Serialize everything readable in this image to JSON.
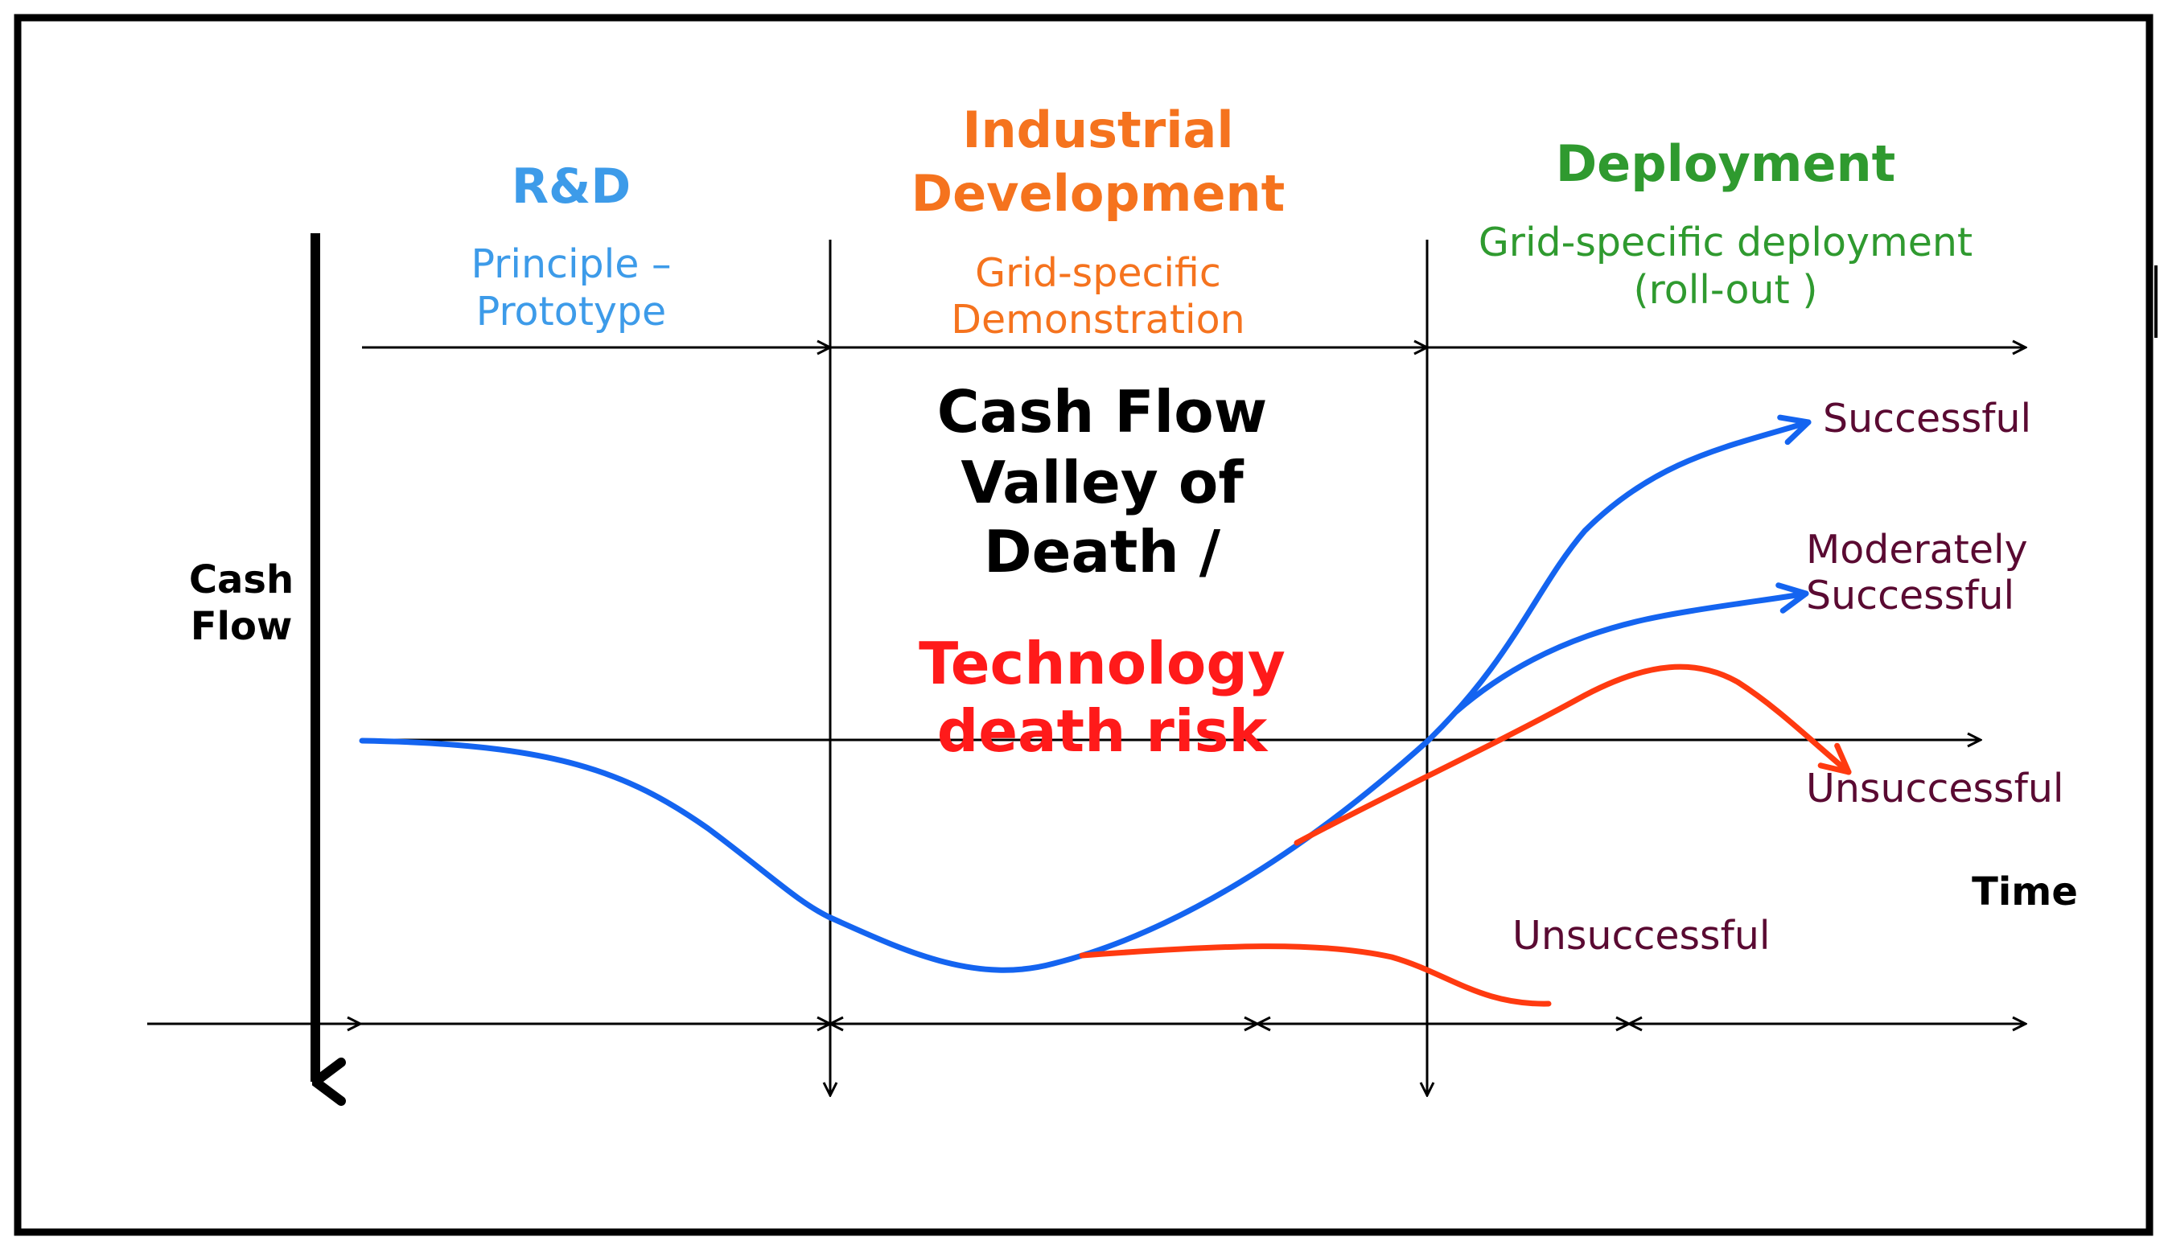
{
  "phases": {
    "rd": {
      "title": "R&D",
      "subtitle_lines": [
        "Principle –",
        "Prototype"
      ]
    },
    "industrial": {
      "title_lines": [
        "Industrial",
        "Development"
      ],
      "subtitle_lines": [
        "Grid-specific",
        "Demonstration"
      ]
    },
    "deployment": {
      "title": "Deployment",
      "subtitle_lines": [
        "Grid-specific deployment",
        "(roll-out )"
      ]
    }
  },
  "center_text": {
    "black_lines": [
      "Cash Flow",
      "Valley of",
      "Death /"
    ],
    "red_lines": [
      "Technology",
      "death risk"
    ]
  },
  "axes": {
    "y_label_lines": [
      "Cash",
      "Flow"
    ],
    "x_label": "Time"
  },
  "outcomes": {
    "successful": "Successful",
    "moderately_lines": [
      "Moderately",
      "Successful"
    ],
    "unsuccessful_right": "Unsuccessful",
    "unsuccessful_low": "Unsuccessful"
  },
  "colors": {
    "rd": "#3d9be9",
    "industrial": "#f5731e",
    "deployment": "#2f9a2f",
    "red": "#ff1a1a",
    "blue_curve": "#1464f0",
    "red_curve": "#ff3a10",
    "outcome_text": "#5a0a32",
    "black": "#000000"
  }
}
